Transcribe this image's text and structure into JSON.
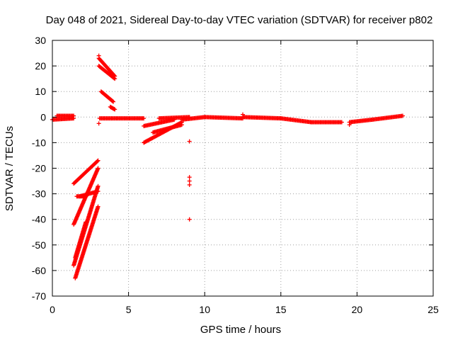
{
  "chart_data": {
    "type": "scatter",
    "title": "Day 048 of 2021, Sidereal Day-to-day VTEC variation (SDTVAR) for receiver p802",
    "xlabel": "GPS time / hours",
    "ylabel": "SDTVAR / TECUs",
    "xlim": [
      0,
      25
    ],
    "ylim": [
      -70,
      30
    ],
    "xticks": [
      "0",
      "5",
      "10",
      "15",
      "20",
      "25"
    ],
    "yticks": [
      "-70",
      "-60",
      "-50",
      "-40",
      "-30",
      "-20",
      "-10",
      "0",
      "10",
      "20",
      "30"
    ],
    "grid": true,
    "marker": "plus",
    "color": "#ff0000",
    "segments": [
      {
        "x": [
          0.0,
          1.4
        ],
        "y": [
          -1,
          -0.5
        ]
      },
      {
        "x": [
          0.3,
          1.4
        ],
        "y": [
          0.5,
          0.5
        ]
      },
      {
        "x": [
          1.4,
          3.0
        ],
        "y": [
          -26,
          -17
        ]
      },
      {
        "x": [
          1.4,
          3.0
        ],
        "y": [
          -42,
          -20
        ]
      },
      {
        "x": [
          1.4,
          3.0
        ],
        "y": [
          -58,
          -27
        ]
      },
      {
        "x": [
          1.5,
          3.0
        ],
        "y": [
          -63,
          -35
        ]
      },
      {
        "x": [
          1.5,
          2.2
        ],
        "y": [
          -55,
          -41
        ]
      },
      {
        "x": [
          1.6,
          2.2
        ],
        "y": [
          -31,
          -31
        ]
      },
      {
        "x": [
          1.8,
          3.0
        ],
        "y": [
          -31,
          -29
        ]
      },
      {
        "x": [
          3.05,
          4.1
        ],
        "y": [
          23,
          16
        ]
      },
      {
        "x": [
          3.05,
          4.1
        ],
        "y": [
          20,
          15
        ]
      },
      {
        "x": [
          3.2,
          4.0
        ],
        "y": [
          10,
          6
        ]
      },
      {
        "x": [
          3.8,
          4.1
        ],
        "y": [
          4,
          3
        ]
      },
      {
        "x": [
          3.1,
          6.0
        ],
        "y": [
          -0.5,
          -0.5
        ]
      },
      {
        "x": [
          6.0,
          8.0
        ],
        "y": [
          -3.5,
          -1
        ]
      },
      {
        "x": [
          6.0,
          8.5
        ],
        "y": [
          -10,
          -2
        ]
      },
      {
        "x": [
          6.6,
          8.5
        ],
        "y": [
          -6,
          -3
        ]
      },
      {
        "x": [
          7.0,
          9.0
        ],
        "y": [
          -0.5,
          0
        ]
      },
      {
        "x": [
          8.5,
          10.0
        ],
        "y": [
          -1,
          0
        ]
      },
      {
        "x": [
          10.0,
          12.5
        ],
        "y": [
          0,
          -0.5
        ]
      },
      {
        "x": [
          12.5,
          15.0
        ],
        "y": [
          0,
          -0.5
        ]
      },
      {
        "x": [
          15.0,
          17.0
        ],
        "y": [
          -0.5,
          -2
        ]
      },
      {
        "x": [
          17.0,
          19.0
        ],
        "y": [
          -2,
          -2
        ]
      },
      {
        "x": [
          19.5,
          21.0
        ],
        "y": [
          -2,
          -1
        ]
      },
      {
        "x": [
          21.0,
          23.0
        ],
        "y": [
          -1,
          0.5
        ]
      }
    ],
    "points": [
      {
        "x": 3.05,
        "y": 24
      },
      {
        "x": 3.05,
        "y": -2.5
      },
      {
        "x": 9.0,
        "y": -9.5
      },
      {
        "x": 9.0,
        "y": -23.5
      },
      {
        "x": 9.0,
        "y": -25
      },
      {
        "x": 9.0,
        "y": -26.5
      },
      {
        "x": 9.0,
        "y": -40
      },
      {
        "x": 12.5,
        "y": 1
      },
      {
        "x": 19.5,
        "y": -3
      }
    ]
  }
}
